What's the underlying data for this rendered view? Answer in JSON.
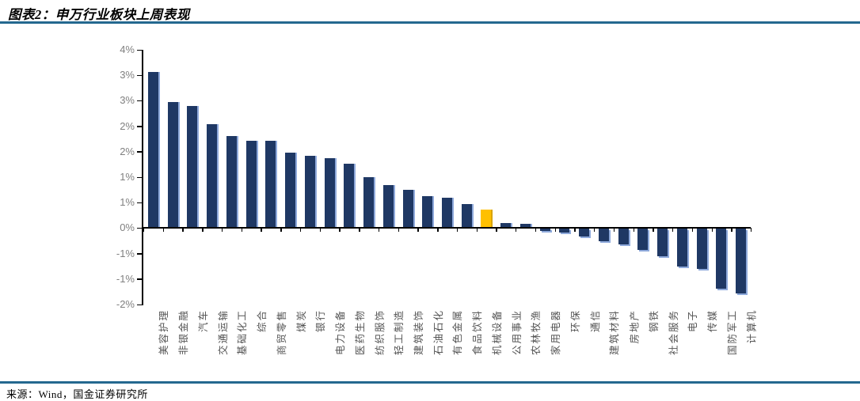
{
  "header": {
    "title": "图表2：申万行业板块上周表现"
  },
  "footer": {
    "source": "来源：Wind，国金证券研究所"
  },
  "chart_data": {
    "type": "bar",
    "title": "申万行业板块上周表现",
    "categories": [
      "美容护理",
      "非银金融",
      "汽车",
      "交通运输",
      "基础化工",
      "综合",
      "商贸零售",
      "煤炭",
      "银行",
      "电力设备",
      "医药生物",
      "纺织服饰",
      "轻工制造",
      "建筑装饰",
      "石油石化",
      "有色金属",
      "食品饮料",
      "机械设备",
      "公用事业",
      "农林牧渔",
      "家用电器",
      "环保",
      "通信",
      "建筑材料",
      "房地产",
      "钢铁",
      "社会服务",
      "电子",
      "传媒",
      "国防军工",
      "计算机"
    ],
    "values": [
      3.07,
      2.48,
      2.4,
      2.04,
      1.8,
      1.72,
      1.71,
      1.48,
      1.42,
      1.38,
      1.27,
      1.0,
      0.85,
      0.75,
      0.63,
      0.59,
      0.47,
      0.36,
      0.1,
      0.08,
      -0.04,
      -0.07,
      -0.15,
      -0.25,
      -0.3,
      -0.41,
      -0.54,
      -0.74,
      -0.78,
      -1.17,
      -1.26
    ],
    "unit": "%",
    "highlight_category": "机械设备",
    "highlight_index": 17,
    "ylim": [
      -1.5,
      3.5
    ],
    "ytick_step": 0.5,
    "ytick_labels_top_to_bottom": [
      "4%",
      "3%",
      "3%",
      "2%",
      "2%",
      "1%",
      "1%",
      "0%",
      "-1%",
      "-1%",
      "-2%"
    ],
    "grid": false,
    "legend": "none",
    "colors": {
      "bar": "#1F3864",
      "bar_shadow": "#8EA9DB",
      "highlight": "#FFC000",
      "highlight_shadow": "#D9A400",
      "axis": "#000000",
      "ytick_label": "#808080",
      "xtick_label": "#545454",
      "rule": "#24688f"
    }
  }
}
